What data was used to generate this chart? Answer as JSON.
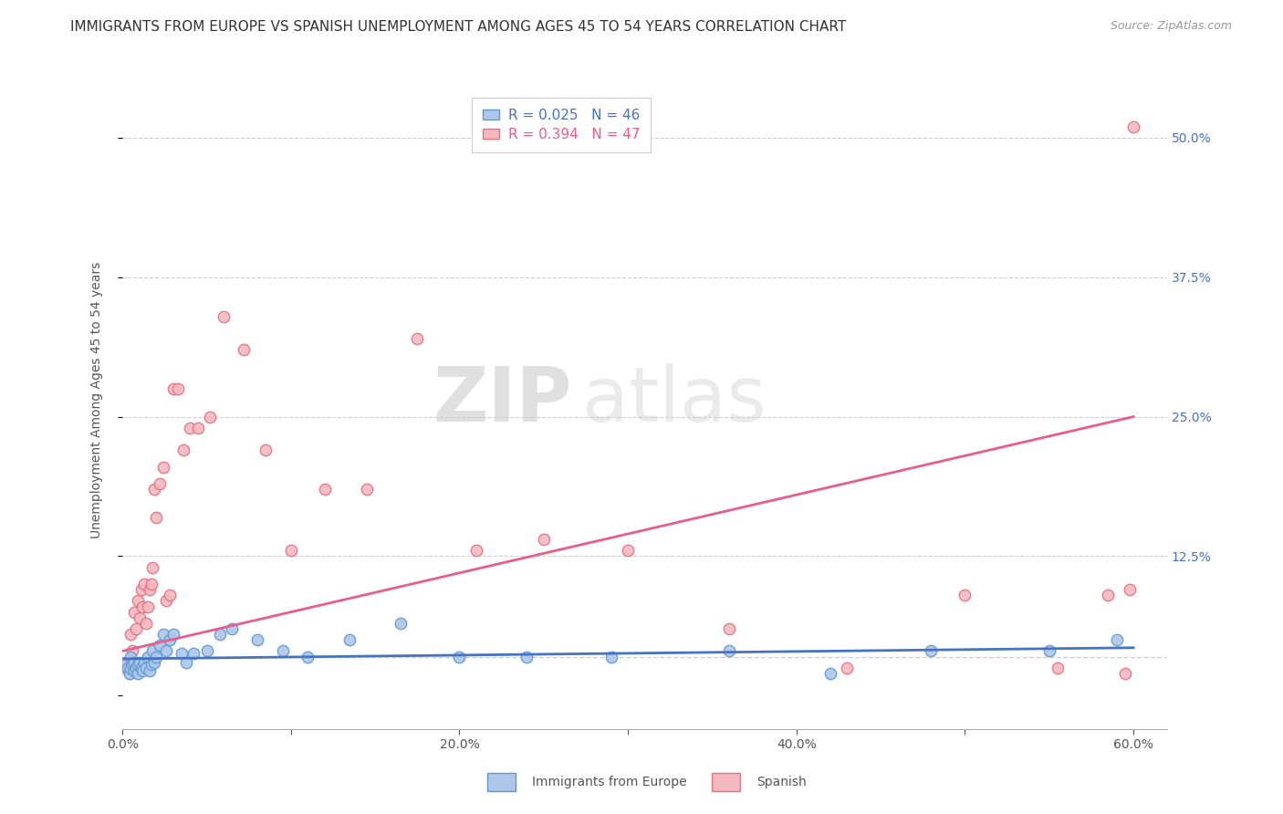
{
  "title": "IMMIGRANTS FROM EUROPE VS SPANISH UNEMPLOYMENT AMONG AGES 45 TO 54 YEARS CORRELATION CHART",
  "source": "Source: ZipAtlas.com",
  "ylabel": "Unemployment Among Ages 45 to 54 years",
  "xlim": [
    0.0,
    0.62
  ],
  "ylim": [
    -0.03,
    0.56
  ],
  "xticks": [
    0.0,
    0.1,
    0.2,
    0.3,
    0.4,
    0.5,
    0.6
  ],
  "xticklabels": [
    "0.0%",
    "",
    "20.0%",
    "",
    "40.0%",
    "",
    "60.0%"
  ],
  "ytick_positions": [
    0.0,
    0.125,
    0.25,
    0.375,
    0.5
  ],
  "ytick_labels": [
    "",
    "12.5%",
    "25.0%",
    "37.5%",
    "50.0%"
  ],
  "blue_face_color": "#aec6e8",
  "blue_edge_color": "#5b9bd5",
  "pink_face_color": "#f4b8c1",
  "pink_edge_color": "#e8717d",
  "blue_line_color": "#4472c4",
  "pink_line_color": "#e85d8a",
  "right_tick_color": "#4472c4",
  "legend_R1": "R = 0.025",
  "legend_N1": "N = 46",
  "legend_R2": "R = 0.394",
  "legend_N2": "N = 47",
  "legend_label1": "Immigrants from Europe",
  "legend_label2": "Spanish",
  "watermark_zip": "ZIP",
  "watermark_atlas": "atlas",
  "blue_scatter_x": [
    0.002,
    0.003,
    0.004,
    0.005,
    0.005,
    0.006,
    0.007,
    0.007,
    0.008,
    0.009,
    0.009,
    0.01,
    0.011,
    0.012,
    0.013,
    0.014,
    0.015,
    0.016,
    0.017,
    0.018,
    0.019,
    0.02,
    0.022,
    0.024,
    0.026,
    0.028,
    0.03,
    0.035,
    0.038,
    0.042,
    0.05,
    0.058,
    0.065,
    0.08,
    0.095,
    0.11,
    0.135,
    0.165,
    0.2,
    0.24,
    0.29,
    0.36,
    0.42,
    0.48,
    0.55,
    0.59
  ],
  "blue_scatter_y": [
    0.03,
    0.025,
    0.02,
    0.035,
    0.025,
    0.028,
    0.022,
    0.03,
    0.025,
    0.02,
    0.028,
    0.03,
    0.025,
    0.022,
    0.03,
    0.025,
    0.035,
    0.022,
    0.028,
    0.04,
    0.03,
    0.035,
    0.045,
    0.055,
    0.04,
    0.05,
    0.055,
    0.038,
    0.03,
    0.038,
    0.04,
    0.055,
    0.06,
    0.05,
    0.04,
    0.035,
    0.05,
    0.065,
    0.035,
    0.035,
    0.035,
    0.04,
    0.02,
    0.04,
    0.04,
    0.05
  ],
  "pink_scatter_x": [
    0.002,
    0.003,
    0.004,
    0.005,
    0.006,
    0.007,
    0.008,
    0.009,
    0.01,
    0.011,
    0.012,
    0.013,
    0.014,
    0.015,
    0.016,
    0.017,
    0.018,
    0.019,
    0.02,
    0.022,
    0.024,
    0.026,
    0.028,
    0.03,
    0.033,
    0.036,
    0.04,
    0.045,
    0.052,
    0.06,
    0.072,
    0.085,
    0.1,
    0.12,
    0.145,
    0.175,
    0.21,
    0.25,
    0.3,
    0.36,
    0.43,
    0.5,
    0.555,
    0.585,
    0.595,
    0.598,
    0.6
  ],
  "pink_scatter_y": [
    0.025,
    0.03,
    0.02,
    0.055,
    0.04,
    0.075,
    0.06,
    0.085,
    0.07,
    0.095,
    0.08,
    0.1,
    0.065,
    0.08,
    0.095,
    0.1,
    0.115,
    0.185,
    0.16,
    0.19,
    0.205,
    0.085,
    0.09,
    0.275,
    0.275,
    0.22,
    0.24,
    0.24,
    0.25,
    0.34,
    0.31,
    0.22,
    0.13,
    0.185,
    0.185,
    0.32,
    0.13,
    0.14,
    0.13,
    0.06,
    0.025,
    0.09,
    0.025,
    0.09,
    0.02,
    0.095,
    0.51
  ],
  "blue_trend_x": [
    0.0,
    0.6
  ],
  "blue_trend_y": [
    0.033,
    0.043
  ],
  "pink_trend_x": [
    0.0,
    0.6
  ],
  "pink_trend_y": [
    0.04,
    0.25
  ],
  "dashed_line_y": 0.035,
  "grid_color": "#d0d0d0",
  "bg_color": "#ffffff",
  "title_fontsize": 11,
  "axis_label_fontsize": 10,
  "tick_fontsize": 10,
  "legend_fontsize": 11
}
